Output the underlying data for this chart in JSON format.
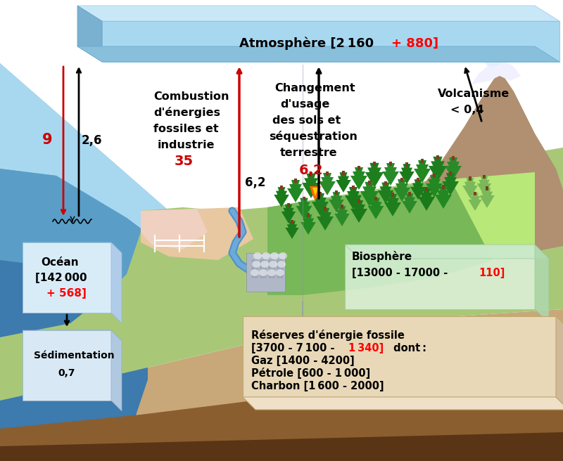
{
  "bg_color": "#ffffff",
  "atm_label_black": "Atmosphère [2 160 ",
  "atm_label_red": "+ 880]",
  "ocean_l1": "Océan",
  "ocean_l2": "[142 000",
  "ocean_l3_black": "[142 000",
  "ocean_red": "+ 568]",
  "sed_label": "Sédimentation",
  "sed_value": "0,7",
  "bio_label": "Biosphère",
  "bio_values_black": "[13000 - 17000 - ",
  "bio_red": "110]",
  "foss_title": "Réserves d'énergie fossile",
  "foss_l1_black": "[3700 - 7100 - ",
  "foss_l1_red": "1 340]",
  "foss_l1_end": " dont :",
  "foss_l2": "Gaz [1400 - 4200]",
  "foss_l3": "Pétrole [600 - 1 000]",
  "foss_l4": "Charbon [1 600 - 2000]",
  "flux_up": "2,6",
  "flux_down_red": "9",
  "comb_l1": "Combustion",
  "comb_l2": "d'énergies",
  "comb_l3": "fossiles et",
  "comb_l4": "industrie",
  "comb_val_red": "35",
  "comb_side": "6,2",
  "chang_l1": "Changement",
  "chang_l2": "d'usage",
  "chang_l3": "des sols et",
  "chang_l4": "séquestration",
  "chang_l5": "terrestre",
  "chang_red": "6,2",
  "volc_l1": "Volcanisme",
  "volc_val": "< 0,4"
}
